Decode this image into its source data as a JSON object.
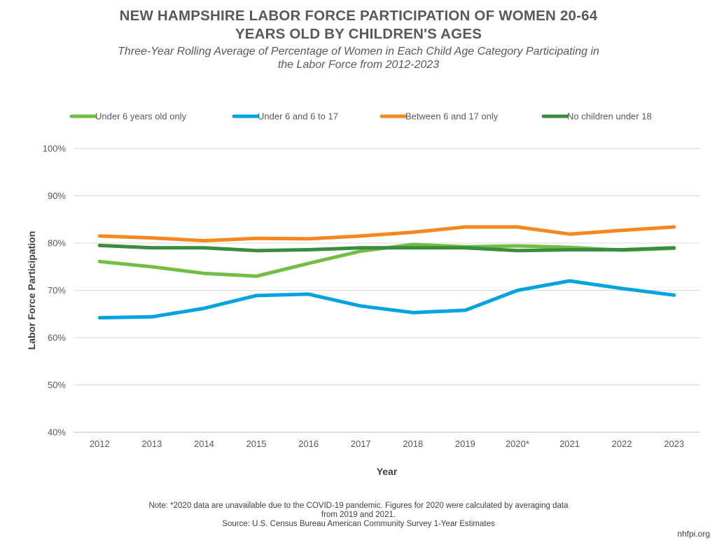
{
  "title_lines": [
    "NEW HAMPSHIRE LABOR FORCE PARTICIPATION OF WOMEN 20-64",
    "YEARS OLD BY CHILDREN'S AGES"
  ],
  "subtitle_lines": [
    "Three-Year Rolling Average of Percentage of Women in Each Child Age Category Participating in",
    "the Labor Force from 2012-2023"
  ],
  "note_lines": [
    "Note: *2020 data are unavailable due to the COVID-19 pandemic. Figures for 2020 were calculated by averaging data",
    "from 2019 and 2021.",
    "Source: U.S. Census Bureau American Community Survey 1-Year Estimates"
  ],
  "credit": "nhfpi.org",
  "chart_data": {
    "type": "line",
    "title": "NEW HAMPSHIRE LABOR FORCE PARTICIPATION OF WOMEN 20-64 YEARS OLD BY CHILDREN'S AGES",
    "subtitle": "Three-Year Rolling Average of Percentage of Women in Each Child Age Category Participating in the Labor Force from 2012-2023",
    "xlabel": "Year",
    "ylabel": "Labor Force Participation",
    "categories": [
      "2012",
      "2013",
      "2014",
      "2015",
      "2016",
      "2017",
      "2018",
      "2019",
      "2020*",
      "2021",
      "2022",
      "2023"
    ],
    "ylim": [
      40,
      100
    ],
    "yticks": [
      40,
      50,
      60,
      70,
      80,
      90,
      100
    ],
    "ytick_labels": [
      "40%",
      "50%",
      "60%",
      "70%",
      "80%",
      "90%",
      "100%"
    ],
    "grid": true,
    "legend_position": "top",
    "series": [
      {
        "name": "Under 6 years old only",
        "color": "#70bf44",
        "values": [
          76.1,
          75.0,
          73.6,
          73.0,
          75.7,
          78.3,
          79.7,
          79.2,
          79.4,
          79.1,
          78.5,
          78.9
        ]
      },
      {
        "name": "Under 6 and 6 to 17",
        "color": "#00a3e0",
        "values": [
          64.2,
          64.4,
          66.2,
          68.9,
          69.2,
          66.7,
          65.3,
          65.8,
          70.0,
          72.0,
          70.4,
          69.0
        ]
      },
      {
        "name": "Between 6 and 17 only",
        "color": "#f7881f",
        "values": [
          81.5,
          81.1,
          80.5,
          81.0,
          80.9,
          81.5,
          82.3,
          83.4,
          83.4,
          81.9,
          82.7,
          83.4
        ]
      },
      {
        "name": "No children under 18",
        "color": "#3a8d3f",
        "values": [
          79.5,
          79.0,
          79.0,
          78.4,
          78.6,
          79.0,
          79.0,
          79.0,
          78.4,
          78.6,
          78.6,
          79.0
        ]
      }
    ]
  }
}
